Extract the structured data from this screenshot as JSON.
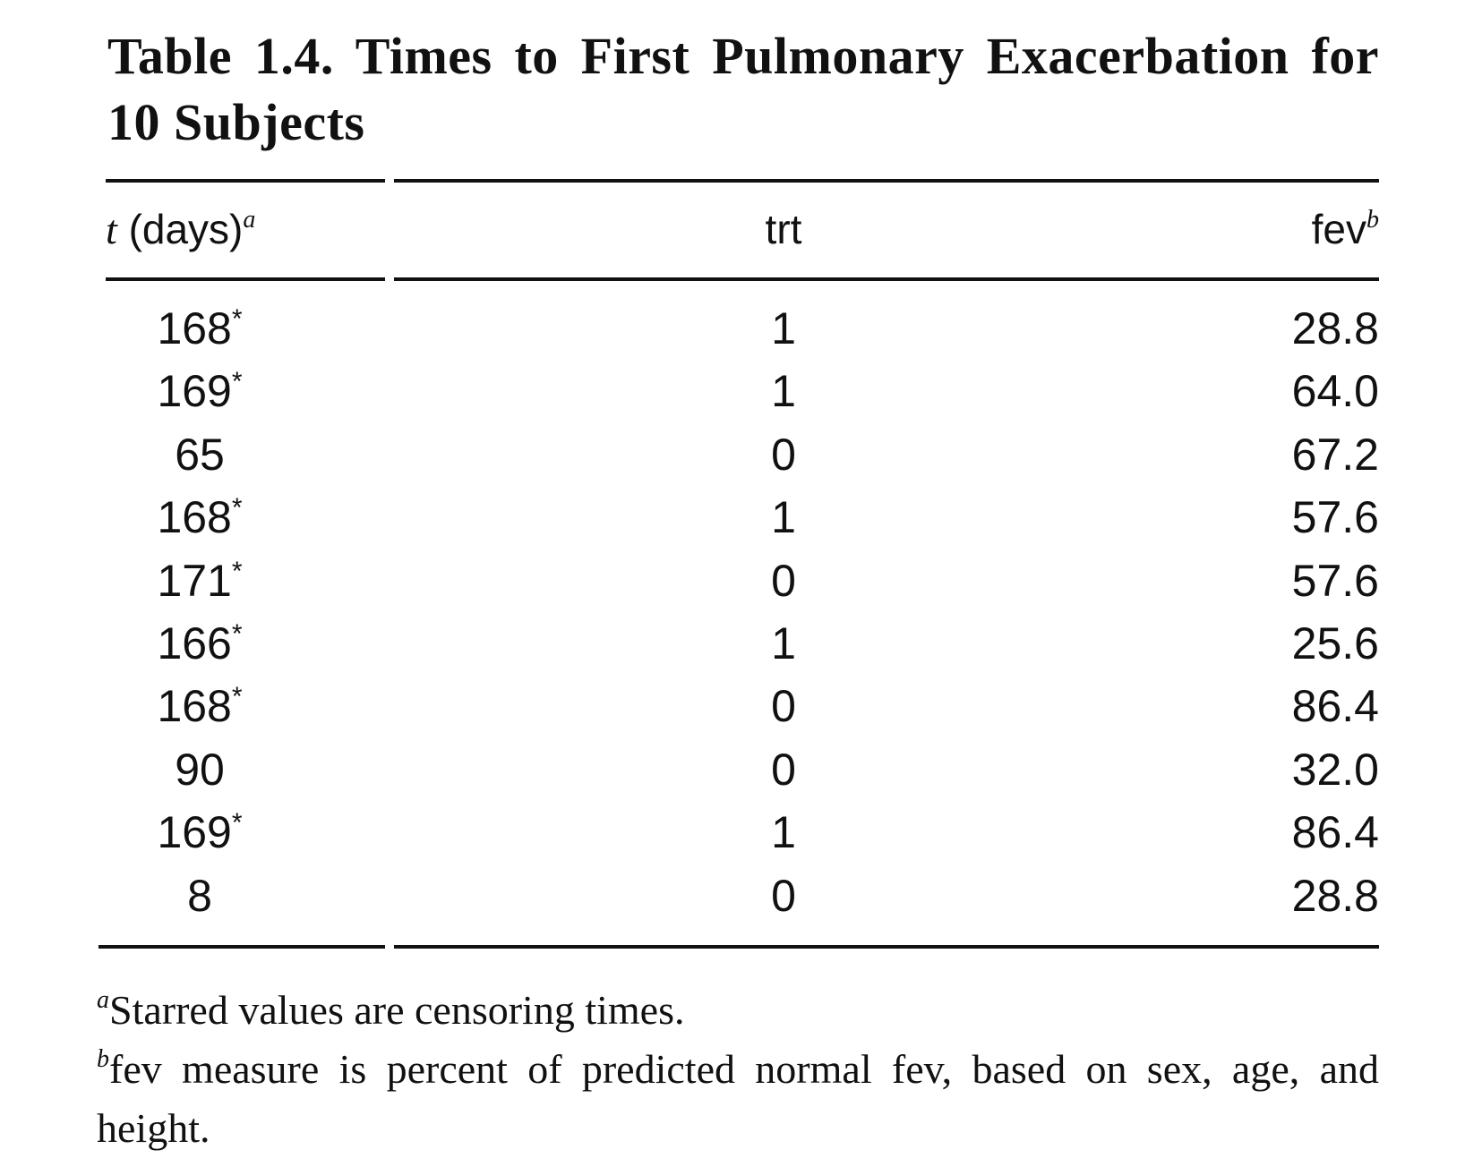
{
  "title": "Table 1.4. Times to First Pulmonary Exacerbation for 10 Subjects",
  "columns": {
    "t": {
      "symbol": "t",
      "label": "(days)",
      "footnote": "a"
    },
    "trt": {
      "label": "trt"
    },
    "fev": {
      "label": "fev",
      "footnote": "b"
    }
  },
  "rows": [
    {
      "t": "168",
      "censored": "*",
      "trt": "1",
      "fev": "28.8"
    },
    {
      "t": "169",
      "censored": "*",
      "trt": "1",
      "fev": "64.0"
    },
    {
      "t": "65",
      "censored": "",
      "trt": "0",
      "fev": "67.2"
    },
    {
      "t": "168",
      "censored": "*",
      "trt": "1",
      "fev": "57.6"
    },
    {
      "t": "171",
      "censored": "*",
      "trt": "0",
      "fev": "57.6"
    },
    {
      "t": "166",
      "censored": "*",
      "trt": "1",
      "fev": "25.6"
    },
    {
      "t": "168",
      "censored": "*",
      "trt": "0",
      "fev": "86.4"
    },
    {
      "t": "90",
      "censored": "",
      "trt": "0",
      "fev": "32.0"
    },
    {
      "t": "169",
      "censored": "*",
      "trt": "1",
      "fev": "86.4"
    },
    {
      "t": "8",
      "censored": "",
      "trt": "0",
      "fev": "28.8"
    }
  ],
  "footnotes": {
    "a": {
      "mark": "a",
      "text": "Starred values are censoring times."
    },
    "b": {
      "mark": "b",
      "text": "fev measure is percent of predicted normal fev, based on sex, age, and height."
    }
  }
}
